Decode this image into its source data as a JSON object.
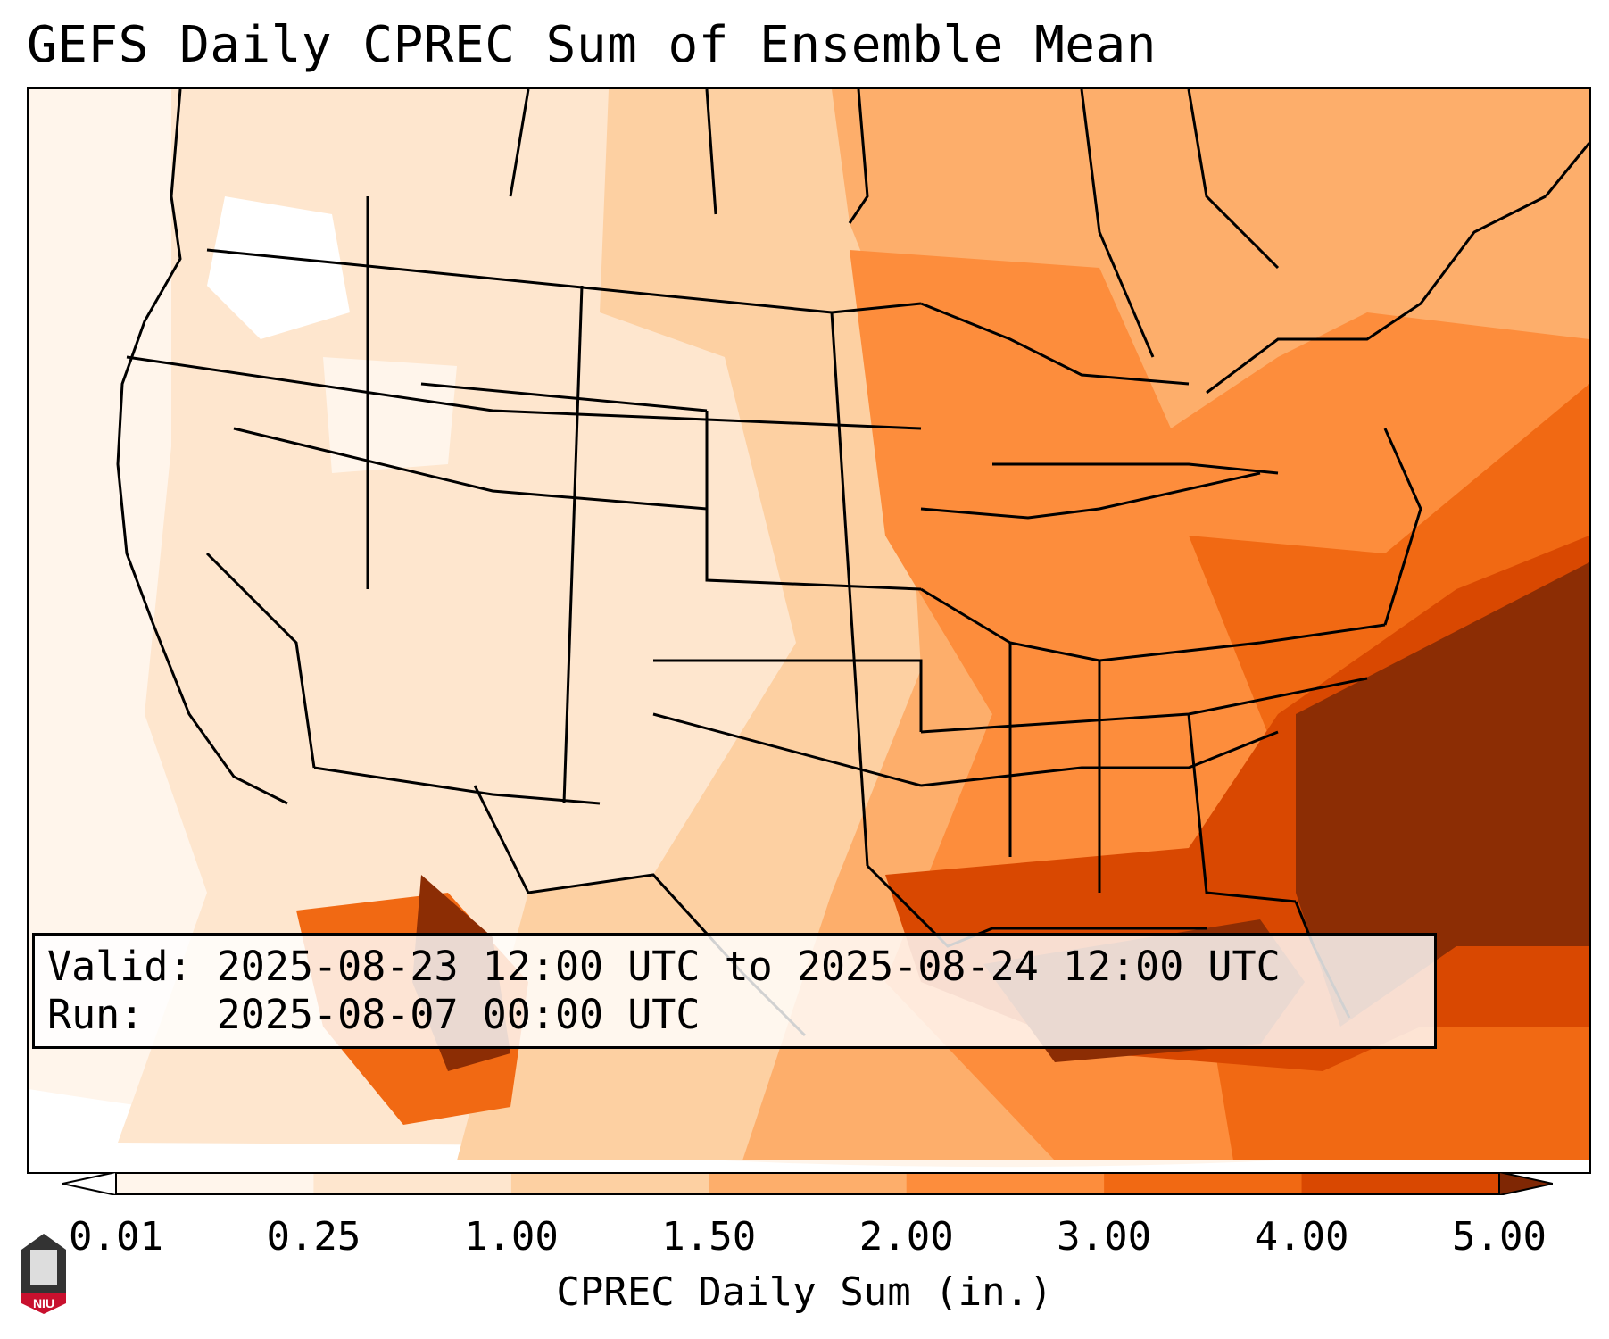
{
  "title": "GEFS Daily CPREC Sum of Ensemble Mean",
  "info": {
    "valid_line": "Valid: 2025-08-23 12:00 UTC to 2025-08-24 12:00 UTC",
    "run_line": "Run:   2025-08-07 00:00 UTC"
  },
  "colorbar": {
    "label": "CPREC Daily Sum (in.)",
    "ticks": [
      "0.01",
      "0.25",
      "1.00",
      "1.50",
      "2.00",
      "3.00",
      "4.00",
      "5.00"
    ],
    "colors": [
      "#fff5eb",
      "#fee6ce",
      "#fdd0a2",
      "#fdae6b",
      "#fd8d3c",
      "#f16913",
      "#d94801",
      "#8c2d04"
    ],
    "under_color": "#ffffff",
    "over_color": "#7f2704"
  },
  "logo": {
    "text": "NIU",
    "colors": {
      "top": "#333333",
      "bottom": "#c8102e"
    }
  }
}
